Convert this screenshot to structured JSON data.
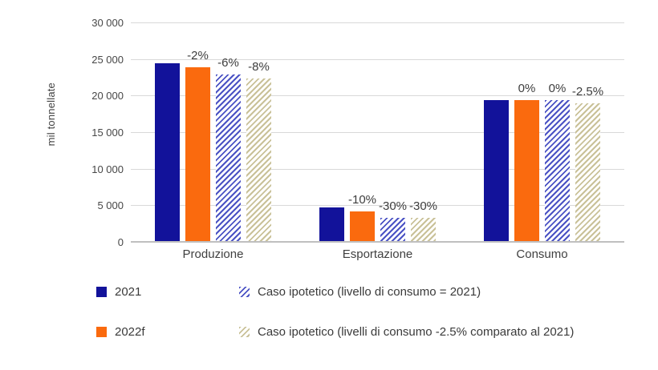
{
  "chart_data": {
    "type": "bar",
    "title": "",
    "xlabel": "",
    "ylabel": "mil tonnellate",
    "ylim": [
      0,
      30000
    ],
    "grid": true,
    "legend_position": "bottom",
    "yticks": [
      {
        "value": 0,
        "label": "0"
      },
      {
        "value": 5000,
        "label": "5 000"
      },
      {
        "value": 10000,
        "label": "10 000"
      },
      {
        "value": 15000,
        "label": "15 000"
      },
      {
        "value": 20000,
        "label": "20 000"
      },
      {
        "value": 25000,
        "label": "25 000"
      },
      {
        "value": 30000,
        "label": "30 000"
      }
    ],
    "categories": [
      "Produzione",
      "Esportazione",
      "Consumo"
    ],
    "series": [
      {
        "name": "2021",
        "style": "solid",
        "color": "#12129A",
        "values": [
          24500,
          4800,
          19500
        ],
        "labels": [
          null,
          null,
          null
        ]
      },
      {
        "name": "2022f",
        "style": "solid",
        "color": "#FA6A0E",
        "values": [
          24000,
          4300,
          19500
        ],
        "labels": [
          "-2%",
          "-10%",
          "0%"
        ]
      },
      {
        "name": "Caso ipotetico (livello di consumo = 2021)",
        "style": "hatch",
        "color": "#4A52C4",
        "values": [
          23000,
          3350,
          19500
        ],
        "labels": [
          "-6%",
          "-30%",
          "0%"
        ]
      },
      {
        "name": "Caso ipotetico (livelli di consumo -2.5% comparato al 2021)",
        "style": "hatch",
        "color": "#C9C198",
        "values": [
          22500,
          3350,
          19000
        ],
        "labels": [
          "-8%",
          "-30%",
          "-2.5%"
        ]
      }
    ],
    "legend_order": [
      0,
      2,
      1,
      3
    ]
  },
  "colors": {
    "grid": "#D9D9D9",
    "baseline": "#BFBFBF",
    "text": "#404040",
    "background": "#FFFFFF"
  }
}
